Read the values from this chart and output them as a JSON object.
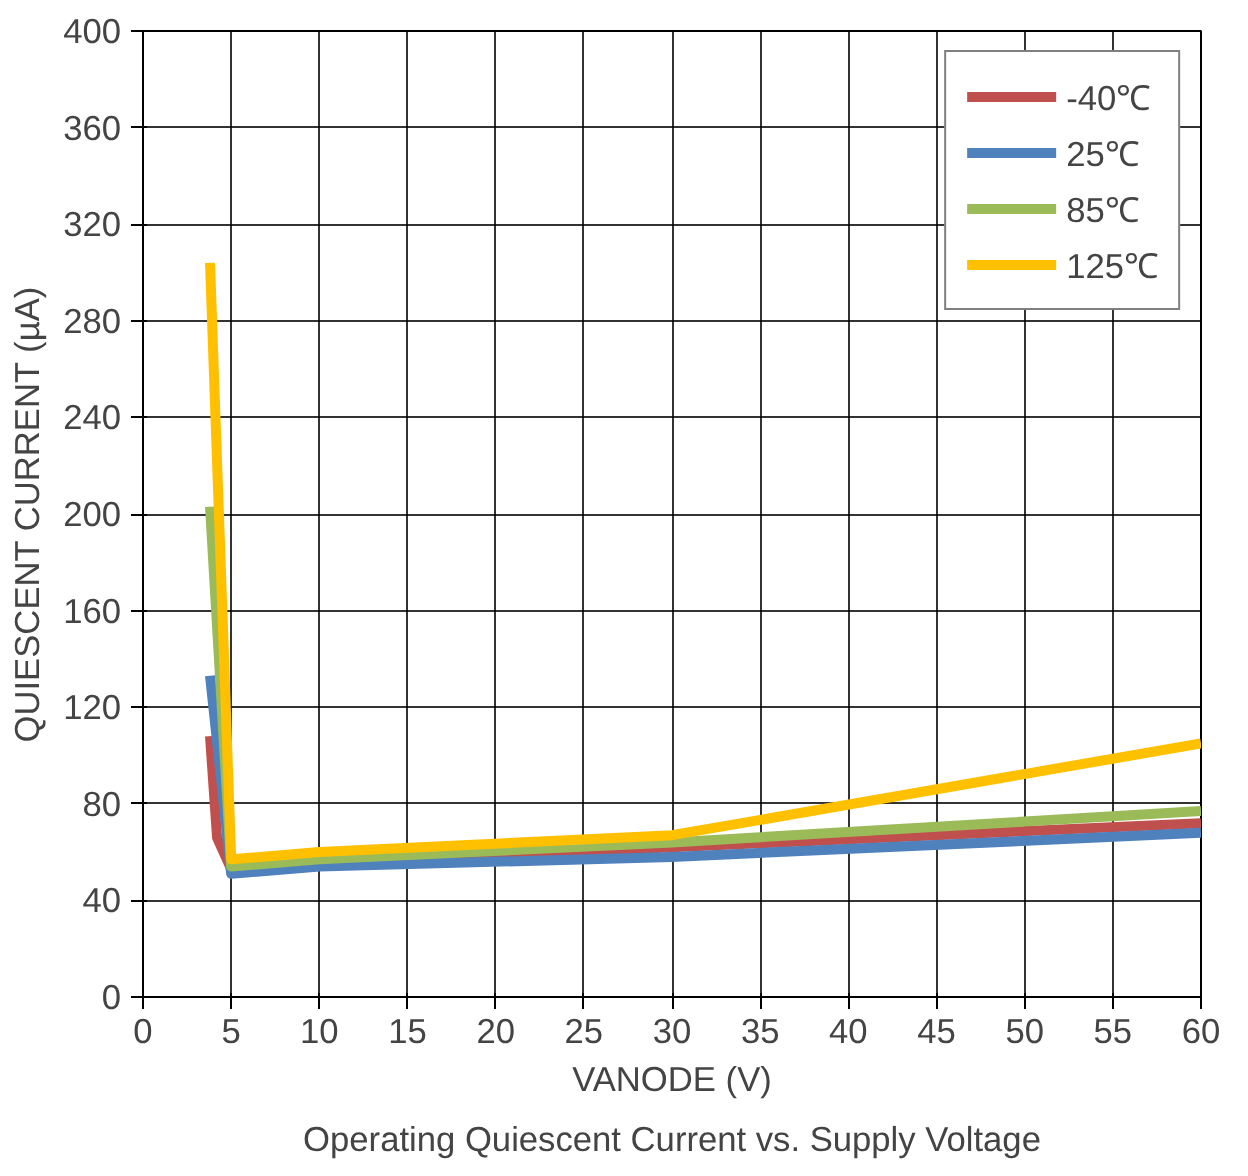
{
  "chart_data": {
    "type": "line",
    "xlabel": "VANODE (V)",
    "ylabel": "QUIESCENT CURRENT (µA)",
    "annotations": [
      "Operating Quiescent Current vs. Supply Voltage"
    ],
    "xlim": [
      0,
      60
    ],
    "xticks": [
      0,
      5,
      10,
      15,
      20,
      25,
      30,
      35,
      40,
      45,
      50,
      55,
      60
    ],
    "ylim": [
      0,
      400
    ],
    "yticks": [
      0,
      40,
      80,
      120,
      160,
      200,
      240,
      280,
      320,
      360,
      400
    ],
    "grid": true,
    "legend": "top right",
    "line_style": "solid",
    "marker": "none",
    "series": [
      {
        "name": "-40℃",
        "color": "#c0504d",
        "x": [
          3.8,
          4.2,
          5,
          10,
          30,
          60
        ],
        "values": [
          108,
          66,
          53,
          55,
          62,
          72
        ]
      },
      {
        "name": "25℃",
        "color": "#4f81bd",
        "x": [
          3.8,
          5,
          10,
          30,
          60
        ],
        "values": [
          133,
          51,
          54,
          58,
          68
        ]
      },
      {
        "name": "85℃",
        "color": "#9bbb59",
        "x": [
          3.8,
          5,
          10,
          30,
          60
        ],
        "values": [
          203,
          54,
          57,
          64,
          77
        ]
      },
      {
        "name": "125℃",
        "color": "#ffc000",
        "x": [
          3.8,
          5,
          10,
          30,
          60
        ],
        "values": [
          304,
          57,
          60,
          67,
          105
        ]
      }
    ]
  }
}
